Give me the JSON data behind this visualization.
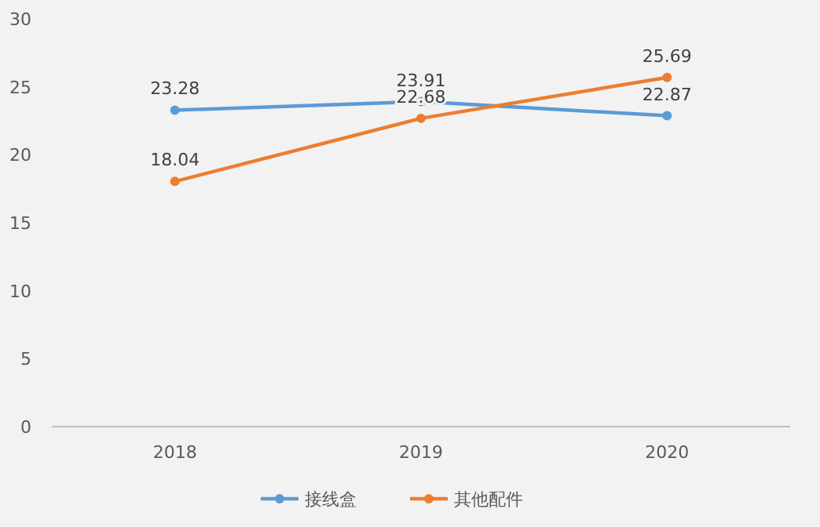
{
  "chart_data": {
    "type": "line",
    "categories": [
      "2018",
      "2019",
      "2020"
    ],
    "series": [
      {
        "name": "接线盒",
        "color": "#5b9bd5",
        "values": [
          23.28,
          23.91,
          22.87
        ]
      },
      {
        "name": "其他配件",
        "color": "#ed7d31",
        "values": [
          18.04,
          22.68,
          25.69
        ]
      }
    ],
    "ylim": [
      0,
      30
    ],
    "yticks": [
      0,
      5,
      10,
      15,
      20,
      25,
      30
    ],
    "grid": false,
    "legend": "bottom",
    "marker": "circle",
    "line_style": "solid",
    "data_labels": true
  }
}
